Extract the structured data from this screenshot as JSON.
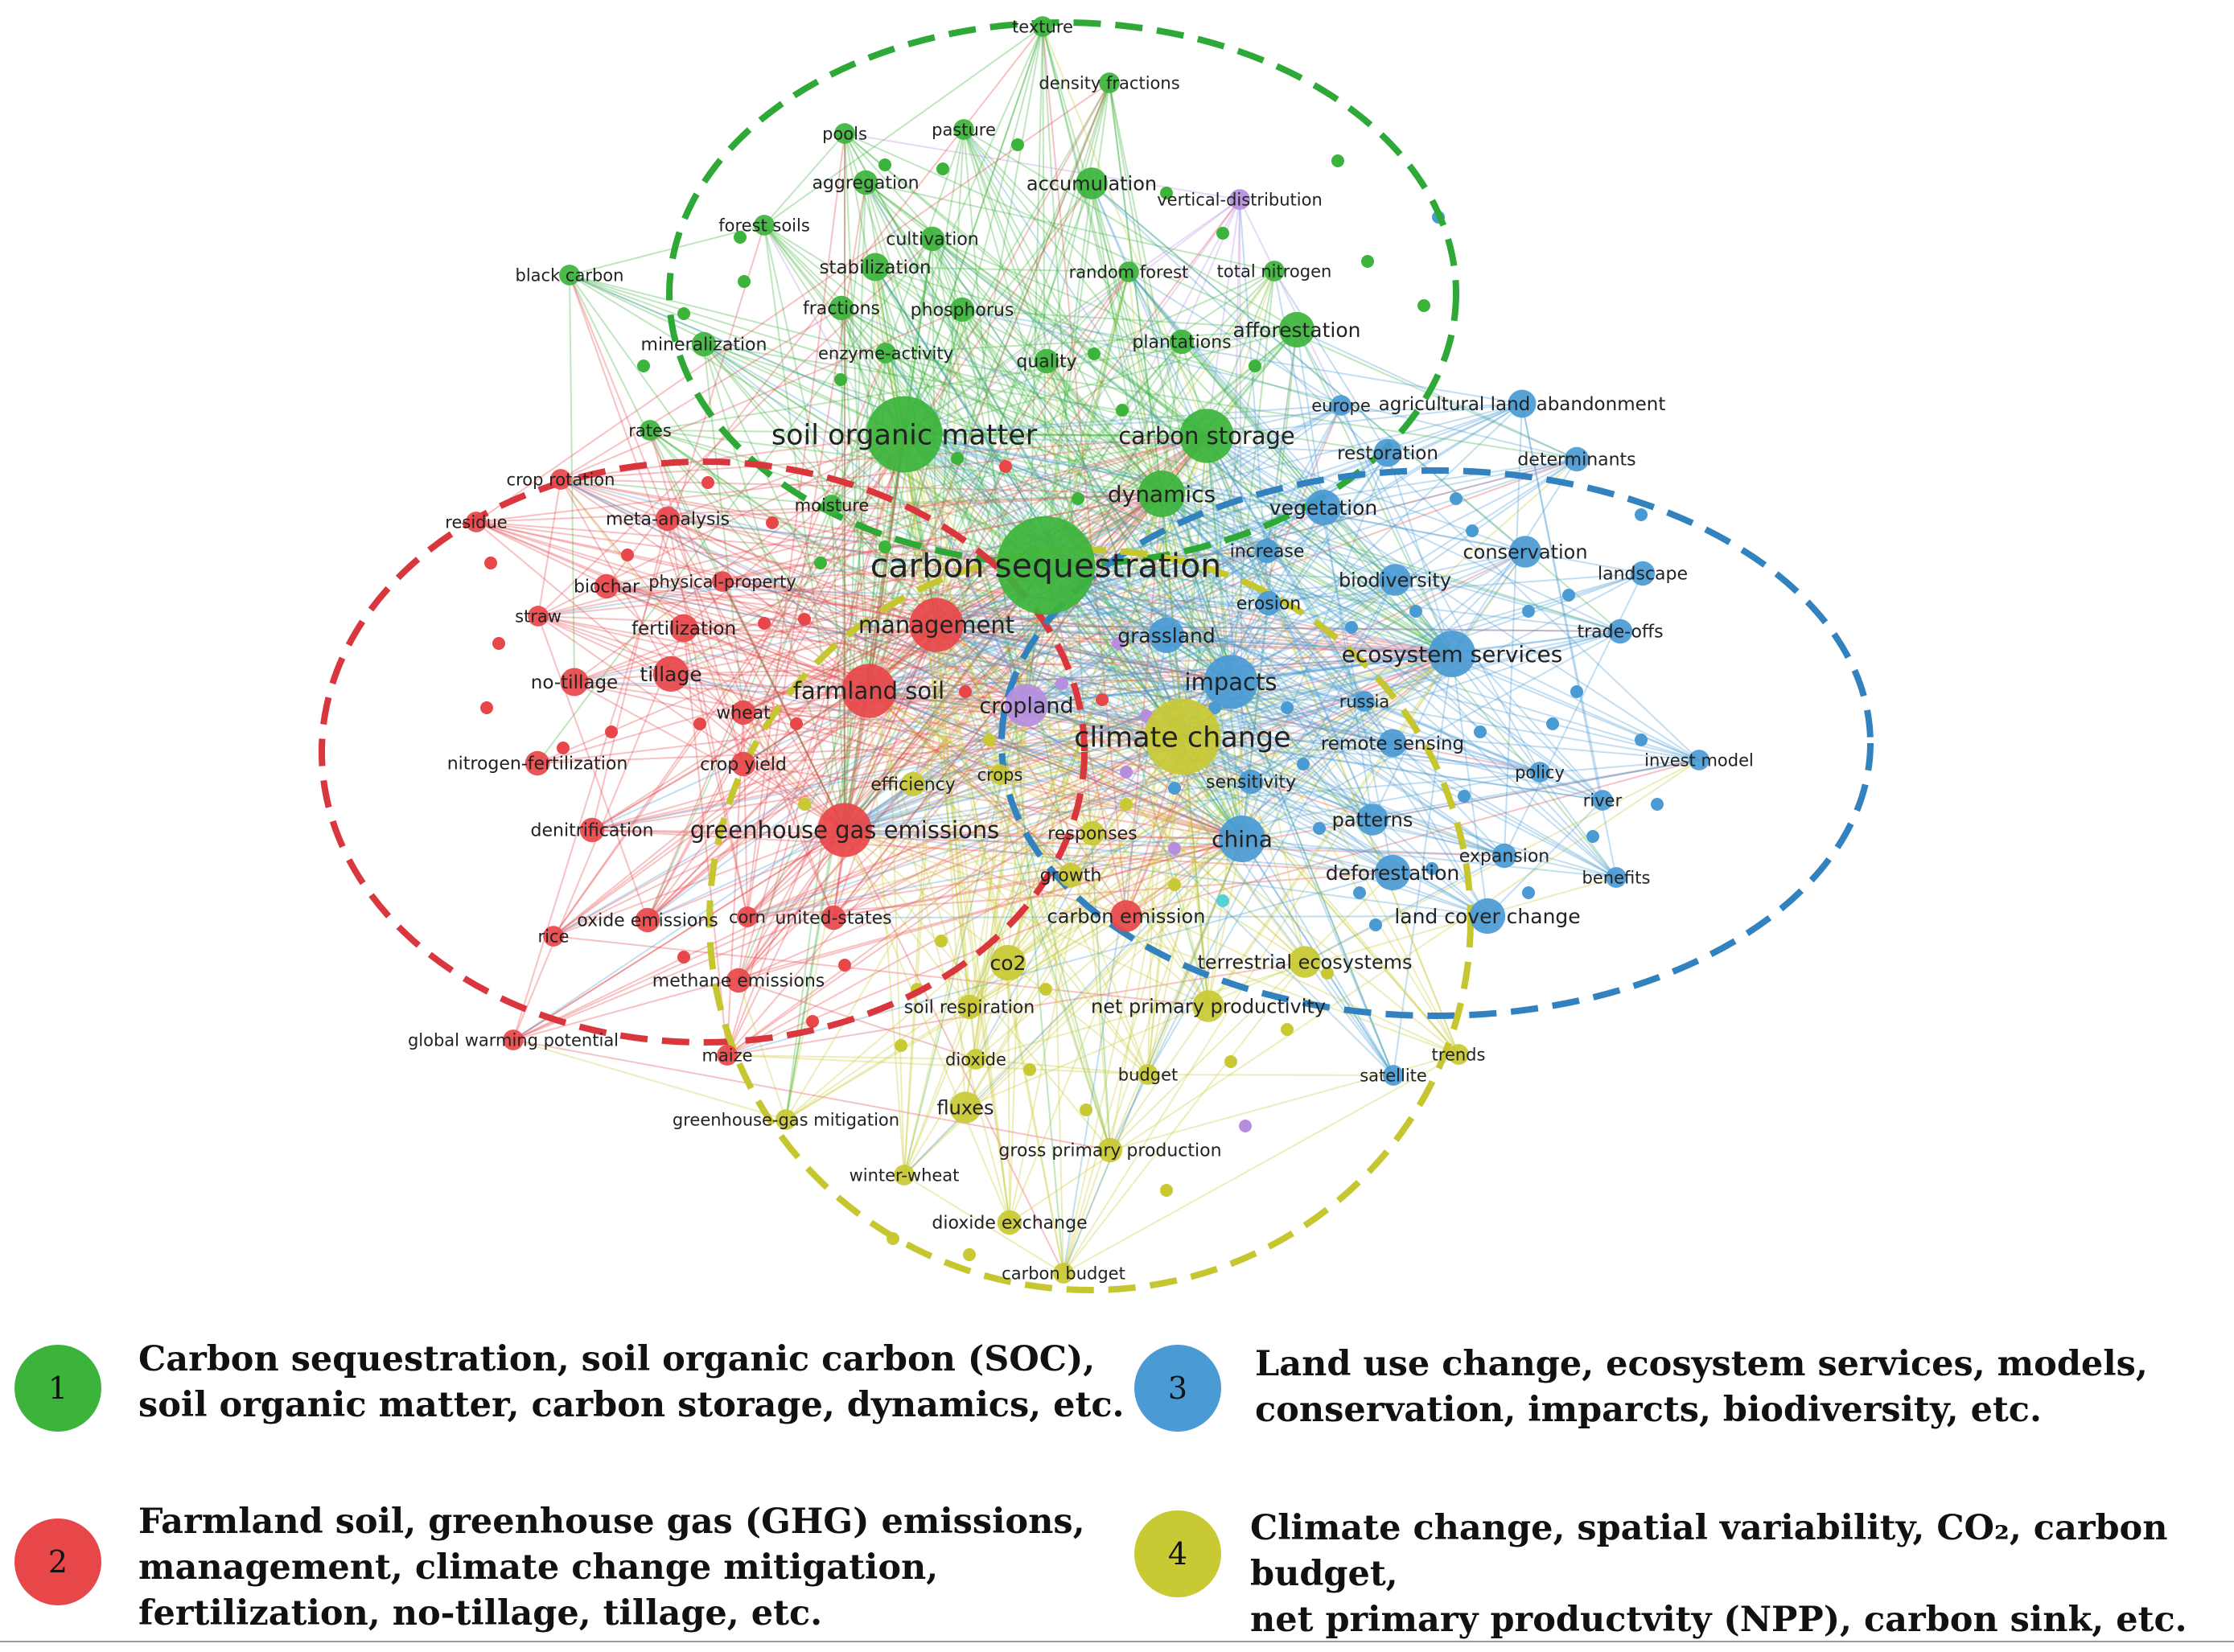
{
  "colors": {
    "cluster1": "#3cb43c",
    "cluster2": "#e8474a",
    "cluster3": "#4a9ad4",
    "cluster4": "#c9c934",
    "cluster5": "#b58ee0",
    "cluster6": "#5bcfd6",
    "ring_green": "#2ea836",
    "ring_red": "#d9363e",
    "ring_blue": "#3382c0",
    "ring_yellow": "#c6c631"
  },
  "nodes": [
    {
      "label": "texture",
      "c": 1,
      "w": 3
    },
    {
      "label": "density fractions",
      "c": 1,
      "w": 3
    },
    {
      "label": "pools",
      "c": 1,
      "w": 3
    },
    {
      "label": "pasture",
      "c": 1,
      "w": 3
    },
    {
      "label": "aggregation",
      "c": 1,
      "w": 4
    },
    {
      "label": "accumulation",
      "c": 1,
      "w": 6
    },
    {
      "label": "vertical-distribution",
      "c": 5,
      "w": 3
    },
    {
      "label": "forest soils",
      "c": 1,
      "w": 3
    },
    {
      "label": "cultivation",
      "c": 1,
      "w": 4
    },
    {
      "label": "black carbon",
      "c": 1,
      "w": 3
    },
    {
      "label": "stabilization",
      "c": 1,
      "w": 5
    },
    {
      "label": "random forest",
      "c": 1,
      "w": 3
    },
    {
      "label": "total nitrogen",
      "c": 1,
      "w": 3
    },
    {
      "label": "fractions",
      "c": 1,
      "w": 4
    },
    {
      "label": "phosphorus",
      "c": 1,
      "w": 4
    },
    {
      "label": "afforestation",
      "c": 1,
      "w": 7
    },
    {
      "label": "mineralization",
      "c": 1,
      "w": 4
    },
    {
      "label": "enzyme-activity",
      "c": 1,
      "w": 3
    },
    {
      "label": "quality",
      "c": 1,
      "w": 4
    },
    {
      "label": "plantations",
      "c": 1,
      "w": 4
    },
    {
      "label": "rates",
      "c": 1,
      "w": 3
    },
    {
      "label": "soil organic matter",
      "c": 1,
      "w": 18
    },
    {
      "label": "carbon storage",
      "c": 1,
      "w": 12
    },
    {
      "label": "dynamics",
      "c": 1,
      "w": 10
    },
    {
      "label": "crop rotation",
      "c": 2,
      "w": 3
    },
    {
      "label": "moisture",
      "c": 1,
      "w": 3
    },
    {
      "label": "meta-analysis",
      "c": 2,
      "w": 4
    },
    {
      "label": "residue",
      "c": 2,
      "w": 3
    },
    {
      "label": "carbon sequestration",
      "c": 1,
      "w": 24
    },
    {
      "label": "biochar",
      "c": 2,
      "w": 4
    },
    {
      "label": "physical-property",
      "c": 2,
      "w": 3
    },
    {
      "label": "straw",
      "c": 2,
      "w": 3
    },
    {
      "label": "fertilization",
      "c": 2,
      "w": 5
    },
    {
      "label": "management",
      "c": 2,
      "w": 12
    },
    {
      "label": "no-tillage",
      "c": 2,
      "w": 5
    },
    {
      "label": "tillage",
      "c": 2,
      "w": 7
    },
    {
      "label": "wheat",
      "c": 2,
      "w": 4
    },
    {
      "label": "farmland soil",
      "c": 2,
      "w": 12
    },
    {
      "label": "nitrogen-fertilization",
      "c": 2,
      "w": 4
    },
    {
      "label": "crop yield",
      "c": 2,
      "w": 4
    },
    {
      "label": "efficiency",
      "c": 4,
      "w": 4
    },
    {
      "label": "crops",
      "c": 4,
      "w": 3
    },
    {
      "label": "cropland",
      "c": 5,
      "w": 9
    },
    {
      "label": "denitrification",
      "c": 2,
      "w": 4
    },
    {
      "label": "greenhouse gas emissions",
      "c": 2,
      "w": 12
    },
    {
      "label": "responses",
      "c": 4,
      "w": 4
    },
    {
      "label": "growth",
      "c": 4,
      "w": 4
    },
    {
      "label": "oxide emissions",
      "c": 2,
      "w": 4
    },
    {
      "label": "corn",
      "c": 2,
      "w": 3
    },
    {
      "label": "united-states",
      "c": 2,
      "w": 4
    },
    {
      "label": "rice",
      "c": 2,
      "w": 3
    },
    {
      "label": "carbon emission",
      "c": 2,
      "w": 6
    },
    {
      "label": "methane emissions",
      "c": 2,
      "w": 4
    },
    {
      "label": "co2",
      "c": 4,
      "w": 7
    },
    {
      "label": "soil respiration",
      "c": 4,
      "w": 4
    },
    {
      "label": "global warming potential",
      "c": 2,
      "w": 3
    },
    {
      "label": "maize",
      "c": 2,
      "w": 3
    },
    {
      "label": "dioxide",
      "c": 4,
      "w": 3
    },
    {
      "label": "fluxes",
      "c": 4,
      "w": 6
    },
    {
      "label": "greenhouse-gas mitigation",
      "c": 4,
      "w": 3
    },
    {
      "label": "winter-wheat",
      "c": 4,
      "w": 3
    },
    {
      "label": "dioxide exchange",
      "c": 4,
      "w": 4
    },
    {
      "label": "carbon budget",
      "c": 4,
      "w": 3
    },
    {
      "label": "gross primary production",
      "c": 4,
      "w": 4
    },
    {
      "label": "budget",
      "c": 4,
      "w": 3
    },
    {
      "label": "net primary productivity",
      "c": 4,
      "w": 6
    },
    {
      "label": "terrestrial ecosystems",
      "c": 4,
      "w": 6
    },
    {
      "label": "satellite",
      "c": 3,
      "w": 3
    },
    {
      "label": "trends",
      "c": 4,
      "w": 3
    },
    {
      "label": "climate change",
      "c": 4,
      "w": 18
    },
    {
      "label": "impacts",
      "c": 3,
      "w": 12
    },
    {
      "label": "grassland",
      "c": 3,
      "w": 7
    },
    {
      "label": "china",
      "c": 3,
      "w": 10
    },
    {
      "label": "deforestation",
      "c": 3,
      "w": 7
    },
    {
      "label": "land cover change",
      "c": 3,
      "w": 7
    },
    {
      "label": "patterns",
      "c": 3,
      "w": 6
    },
    {
      "label": "expansion",
      "c": 3,
      "w": 4
    },
    {
      "label": "sensitivity",
      "c": 3,
      "w": 4
    },
    {
      "label": "remote sensing",
      "c": 3,
      "w": 5
    },
    {
      "label": "russia",
      "c": 3,
      "w": 3
    },
    {
      "label": "ecosystem services",
      "c": 3,
      "w": 10
    },
    {
      "label": "erosion",
      "c": 3,
      "w": 4
    },
    {
      "label": "biodiversity",
      "c": 3,
      "w": 6
    },
    {
      "label": "increase",
      "c": 3,
      "w": 4
    },
    {
      "label": "vegetation",
      "c": 3,
      "w": 7
    },
    {
      "label": "restoration",
      "c": 3,
      "w": 5
    },
    {
      "label": "europe",
      "c": 3,
      "w": 3
    },
    {
      "label": "agricultural land abandonment",
      "c": 3,
      "w": 5
    },
    {
      "label": "determinants",
      "c": 3,
      "w": 4
    },
    {
      "label": "conservation",
      "c": 3,
      "w": 6
    },
    {
      "label": "landscape",
      "c": 3,
      "w": 4
    },
    {
      "label": "trade-offs",
      "c": 3,
      "w": 4
    },
    {
      "label": "invest model",
      "c": 3,
      "w": 3
    },
    {
      "label": "policy",
      "c": 3,
      "w": 3
    },
    {
      "label": "river",
      "c": 3,
      "w": 3
    },
    {
      "label": "benefits",
      "c": 3,
      "w": 3
    }
  ],
  "legend": [
    {
      "number": "1",
      "text": "Carbon sequestration, soil organic carbon (SOC),\nsoil organic matter, carbon storage, dynamics, etc.",
      "cluster": 1
    },
    {
      "number": "2",
      "text": "Farmland soil, greenhouse gas (GHG) emissions,\nmanagement, climate change mitigation,\nfertilization, no-tillage, tillage, etc.",
      "cluster": 2
    },
    {
      "number": "3",
      "text": "Land use change, ecosystem services, models,\nconservation, imparcts, biodiversity, etc.",
      "cluster": 3
    },
    {
      "number": "4",
      "text": "Climate change, spatial variability, CO₂, carbon budget,\nnet primary productvity (NPP), carbon sink, etc.",
      "cluster": 4
    }
  ]
}
